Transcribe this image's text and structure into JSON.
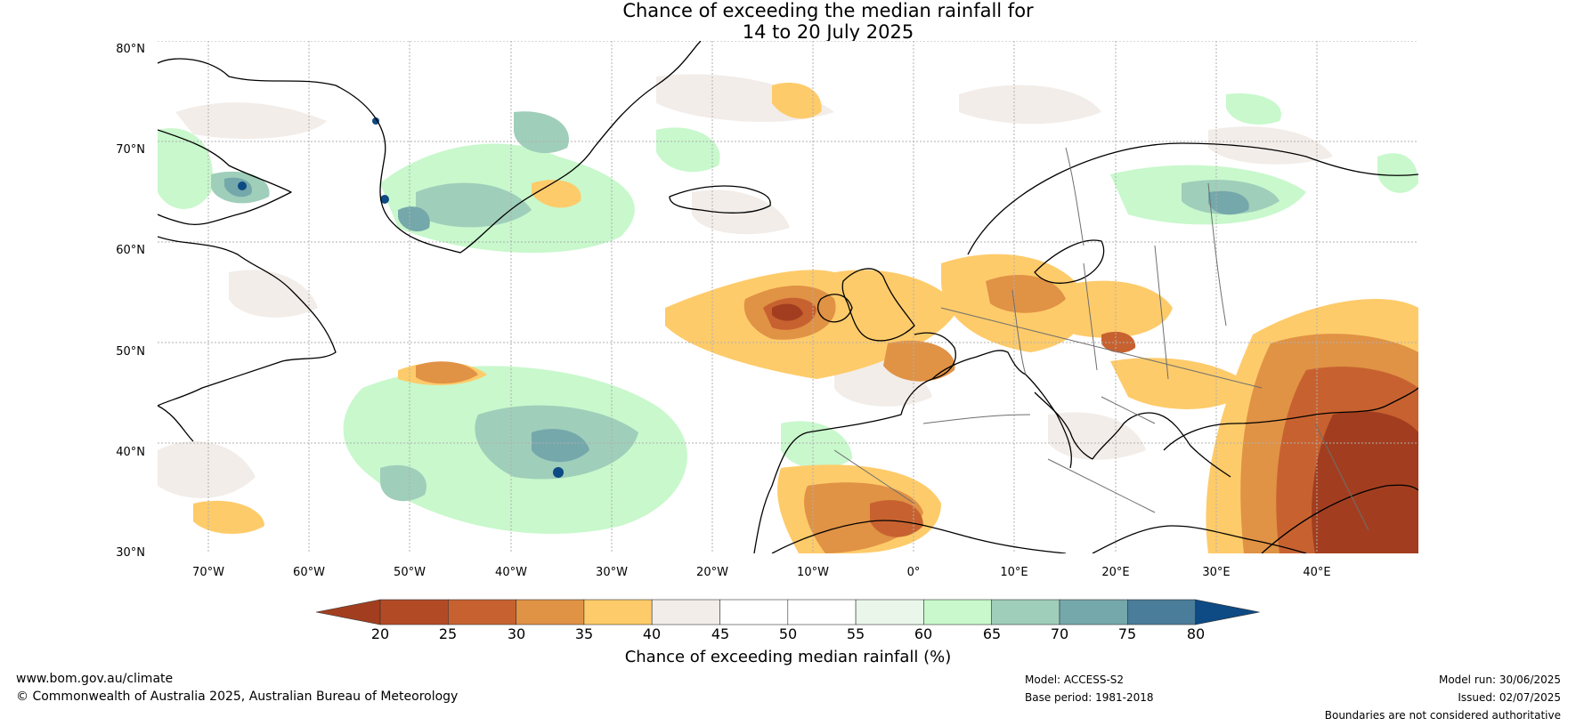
{
  "title": {
    "line1": "Chance of exceeding the median rainfall for",
    "line2": "14 to 20 July 2025"
  },
  "map": {
    "lat_labels": [
      "80°N",
      "70°N",
      "60°N",
      "50°N",
      "40°N",
      "30°N"
    ],
    "lon_labels": [
      "70°W",
      "60°W",
      "50°W",
      "40°W",
      "30°W",
      "20°W",
      "10°W",
      "0°",
      "10°E",
      "20°E",
      "30°E",
      "40°E"
    ]
  },
  "colorbar": {
    "ticks": [
      "20",
      "25",
      "30",
      "35",
      "40",
      "45",
      "50",
      "55",
      "60",
      "65",
      "70",
      "75",
      "80"
    ],
    "colors": [
      "#a23e1f",
      "#b34a26",
      "#c76230",
      "#e09245",
      "#fecb6a",
      "#f2ede9",
      "#ffffff",
      "#ffffff",
      "#e9f6e9",
      "#c8f8cc",
      "#9fceba",
      "#75a8ab",
      "#4a7d99",
      "#0e4a83"
    ],
    "label": "Chance of exceeding median rainfall (%)"
  },
  "footer": {
    "website": "www.bom.gov.au/climate",
    "copyright": "© Commonwealth of Australia 2025, Australian Bureau of Meteorology",
    "model": "Model: ACCESS-S2",
    "base_period": "Base period: 1981-2018",
    "model_run": "Model run: 30/06/2025",
    "issued": "Issued: 02/07/2025",
    "disclaimer": "Boundaries are not considered authoritative"
  }
}
